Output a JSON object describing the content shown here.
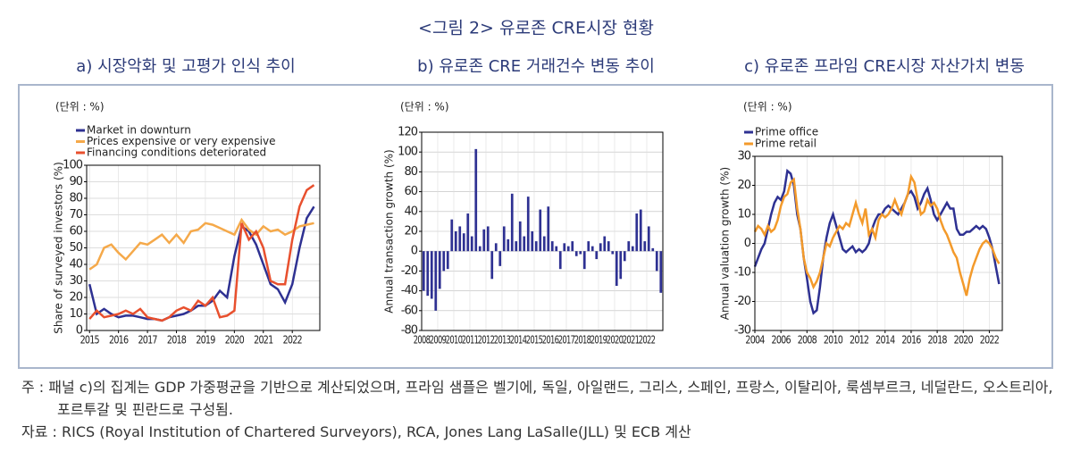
{
  "figure": {
    "title": "<그림 2> 유로존 CRE시장 현황",
    "note": "주 : 패널 c)의 집계는 GDP 가중평균을 기반으로 계산되었으며, 프라임 샘플은 벨기에, 독일, 아일랜드, 그리스, 스페인, 프랑스, 이탈리아, 룩셈부르크, 네덜란드, 오스트리아, 포르투갈 및 핀란드로 구성됨.",
    "source": "자료 : RICS (Royal Institution of Chartered Surveyors), RCA, Jones Lang LaSalle(JLL) 및 ECB 계산"
  },
  "chart_data": [
    {
      "type": "line",
      "title": "a) 시장악화 및 고평가 인식 추이",
      "subtitle": "(단위 : %)",
      "y_label": "Share of surveyed investors (%)",
      "x": [
        2015,
        2015.25,
        2015.5,
        2015.75,
        2016,
        2016.25,
        2016.5,
        2016.75,
        2017,
        2017.25,
        2017.5,
        2017.75,
        2018,
        2018.25,
        2018.5,
        2018.75,
        2019,
        2019.25,
        2019.5,
        2019.75,
        2020,
        2020.25,
        2020.5,
        2020.75,
        2021,
        2021.25,
        2021.5,
        2021.75,
        2022,
        2022.25,
        2022.5,
        2022.75
      ],
      "xlim": [
        2014.9,
        2022.95
      ],
      "xticks": [
        2015,
        2016,
        2017,
        2018,
        2019,
        2020,
        2021,
        2022
      ],
      "ylim": [
        0,
        100
      ],
      "yticks": [
        0,
        10,
        20,
        30,
        40,
        50,
        60,
        70,
        80,
        90,
        100
      ],
      "grid": true,
      "series": [
        {
          "name": "Market in downturn",
          "color": "#2e3192",
          "values": [
            28,
            10,
            13,
            10,
            8,
            9,
            9,
            8,
            7,
            7,
            6,
            8,
            9,
            10,
            12,
            15,
            15,
            18,
            24,
            20,
            45,
            63,
            60,
            52,
            40,
            28,
            25,
            17,
            28,
            50,
            68,
            75
          ]
        },
        {
          "name": "Prices expensive or very expensive",
          "color": "#f5a94a",
          "values": [
            37,
            40,
            50,
            52,
            47,
            43,
            48,
            53,
            52,
            55,
            58,
            53,
            58,
            53,
            60,
            61,
            65,
            64,
            62,
            60,
            58,
            67,
            61,
            58,
            63,
            60,
            61,
            58,
            60,
            63,
            64,
            65
          ]
        },
        {
          "name": "Financing conditions deteriorated",
          "color": "#e8502e",
          "values": [
            7,
            12,
            8,
            9,
            10,
            12,
            10,
            13,
            8,
            7,
            6,
            8,
            12,
            14,
            12,
            18,
            15,
            20,
            8,
            9,
            12,
            65,
            55,
            60,
            50,
            30,
            28,
            28,
            55,
            75,
            85,
            88
          ]
        }
      ]
    },
    {
      "type": "bar",
      "title": "b) 유로존 CRE 거래건수 변동 추이",
      "subtitle": "(단위 : %)",
      "y_label": "Annual transaction growth (%)",
      "categories": [
        "2008",
        null,
        null,
        null,
        "2009",
        null,
        null,
        null,
        "2010",
        null,
        null,
        null,
        "2011",
        null,
        null,
        null,
        "2012",
        null,
        null,
        null,
        "2013",
        null,
        null,
        null,
        "2014",
        null,
        null,
        null,
        "2015",
        null,
        null,
        null,
        "2016",
        null,
        null,
        null,
        "2017",
        null,
        null,
        null,
        "2018",
        null,
        null,
        null,
        "2019",
        null,
        null,
        null,
        "2020",
        null,
        null,
        null,
        "2021",
        null,
        null,
        null,
        "2022",
        null,
        null,
        null
      ],
      "values": [
        -40,
        -45,
        -48,
        -60,
        -38,
        -20,
        -18,
        32,
        20,
        25,
        18,
        38,
        15,
        103,
        5,
        22,
        25,
        -28,
        8,
        -15,
        25,
        12,
        58,
        10,
        30,
        15,
        55,
        20,
        10,
        42,
        15,
        45,
        10,
        5,
        -18,
        8,
        5,
        10,
        -5,
        -3,
        -18,
        10,
        5,
        -8,
        8,
        15,
        10,
        -3,
        -35,
        -28,
        -10,
        10,
        5,
        38,
        42,
        10,
        25,
        3,
        -20,
        -42
      ],
      "color": "#2e3192",
      "ylim": [
        -80,
        120
      ],
      "yticks": [
        -80,
        -60,
        -40,
        -20,
        0,
        20,
        40,
        60,
        80,
        100,
        120
      ],
      "grid": true
    },
    {
      "type": "line",
      "title": "c) 유로존 프라임 CRE시장 자산가치 변동",
      "subtitle": "(단위 : %)",
      "y_label": "Annual valuation growth (%)",
      "x": [
        2004,
        2004.25,
        2004.5,
        2004.75,
        2005,
        2005.25,
        2005.5,
        2005.75,
        2006,
        2006.25,
        2006.5,
        2006.75,
        2007,
        2007.25,
        2007.5,
        2007.75,
        2008,
        2008.25,
        2008.5,
        2008.75,
        2009,
        2009.25,
        2009.5,
        2009.75,
        2010,
        2010.25,
        2010.5,
        2010.75,
        2011,
        2011.25,
        2011.5,
        2011.75,
        2012,
        2012.25,
        2012.5,
        2012.75,
        2013,
        2013.25,
        2013.5,
        2013.75,
        2014,
        2014.25,
        2014.5,
        2014.75,
        2015,
        2015.25,
        2015.5,
        2015.75,
        2016,
        2016.25,
        2016.5,
        2016.75,
        2017,
        2017.25,
        2017.5,
        2017.75,
        2018,
        2018.25,
        2018.5,
        2018.75,
        2019,
        2019.25,
        2019.5,
        2019.75,
        2020,
        2020.25,
        2020.5,
        2020.75,
        2021,
        2021.25,
        2021.5,
        2021.75,
        2022,
        2022.25,
        2022.5,
        2022.75
      ],
      "xlim": [
        2004,
        2023
      ],
      "xticks": [
        2004,
        2006,
        2008,
        2010,
        2012,
        2014,
        2016,
        2018,
        2020,
        2022
      ],
      "ylim": [
        -30,
        30
      ],
      "yticks": [
        -30,
        -20,
        -10,
        0,
        10,
        20,
        30
      ],
      "grid": true,
      "series": [
        {
          "name": "Prime office",
          "color": "#2e3192",
          "values": [
            -8,
            -5,
            -2,
            0,
            5,
            10,
            14,
            16,
            15,
            18,
            25,
            24,
            20,
            10,
            5,
            -5,
            -12,
            -20,
            -24,
            -23,
            -15,
            -5,
            2,
            7,
            10,
            6,
            2,
            -2,
            -3,
            -2,
            -1,
            -3,
            -2,
            -3,
            -2,
            0,
            5,
            8,
            10,
            10,
            12,
            13,
            12,
            11,
            10,
            12,
            14,
            17,
            18,
            16,
            12,
            14,
            17,
            19,
            15,
            10,
            8,
            10,
            12,
            14,
            12,
            12,
            5,
            3,
            3,
            4,
            4,
            5,
            6,
            5,
            6,
            5,
            2,
            -2,
            -8,
            -14
          ]
        },
        {
          "name": "Prime retail",
          "color": "#f39a2b",
          "values": [
            4,
            6,
            5,
            3,
            6,
            4,
            5,
            8,
            13,
            16,
            17,
            21,
            22,
            12,
            5,
            -5,
            -10,
            -12,
            -15,
            -13,
            -10,
            -5,
            0,
            -1,
            2,
            4,
            6,
            5,
            7,
            6,
            10,
            14,
            10,
            7,
            12,
            3,
            5,
            2,
            8,
            10,
            9,
            10,
            12,
            15,
            12,
            10,
            14,
            17,
            23,
            21,
            15,
            10,
            11,
            15,
            13,
            14,
            12,
            8,
            5,
            3,
            0,
            -3,
            -5,
            -10,
            -14,
            -18,
            -12,
            -8,
            -5,
            -2,
            0,
            1,
            0,
            -2,
            -5,
            -7
          ]
        }
      ]
    }
  ]
}
